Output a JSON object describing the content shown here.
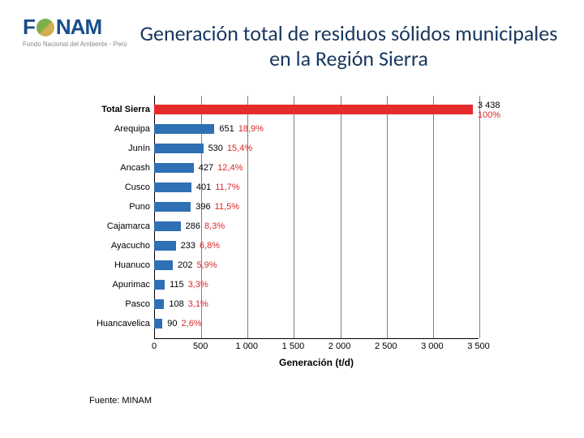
{
  "logo": {
    "left": "F",
    "right": "NAM",
    "subtitle": "Fondo Nacional del Ambiente - Perú"
  },
  "title": "Generación total de residuos sólidos municipales en la Región Sierra",
  "source": "Fuente: MINAM",
  "chart": {
    "type": "bar-horizontal",
    "xlabel": "Generación (t/d)",
    "xmax": 3500,
    "xtick_step": 500,
    "xticks": [
      "0",
      "500",
      "1 000",
      "1 500",
      "2 000",
      "2 500",
      "3 000",
      "3 500"
    ],
    "grid_color": "#808080",
    "bar_color": "#2f6fb3",
    "highlight_color": "#e52b2b",
    "pct_color": "#d92929",
    "categories": [
      {
        "label": "Total Sierra",
        "value": 3438,
        "value_text": "3 438",
        "pct": "100%",
        "highlight": true
      },
      {
        "label": "Arequipa",
        "value": 651,
        "value_text": "651",
        "pct": "18,9%"
      },
      {
        "label": "Junín",
        "value": 530,
        "value_text": "530",
        "pct": "15,4%"
      },
      {
        "label": "Ancash",
        "value": 427,
        "value_text": "427",
        "pct": "12,4%"
      },
      {
        "label": "Cusco",
        "value": 401,
        "value_text": "401",
        "pct": "11,7%"
      },
      {
        "label": "Puno",
        "value": 396,
        "value_text": "396",
        "pct": "11,5%"
      },
      {
        "label": "Cajamarca",
        "value": 286,
        "value_text": "286",
        "pct": "8,3%"
      },
      {
        "label": "Ayacucho",
        "value": 233,
        "value_text": "233",
        "pct": "6,8%"
      },
      {
        "label": "Huanuco",
        "value": 202,
        "value_text": "202",
        "pct": "5,9%"
      },
      {
        "label": "Apurimac",
        "value": 115,
        "value_text": "115",
        "pct": "3,3%"
      },
      {
        "label": "Pasco",
        "value": 108,
        "value_text": "108",
        "pct": "3,1%"
      },
      {
        "label": "Huancavelica",
        "value": 90,
        "value_text": "90",
        "pct": "2,6%"
      }
    ]
  }
}
